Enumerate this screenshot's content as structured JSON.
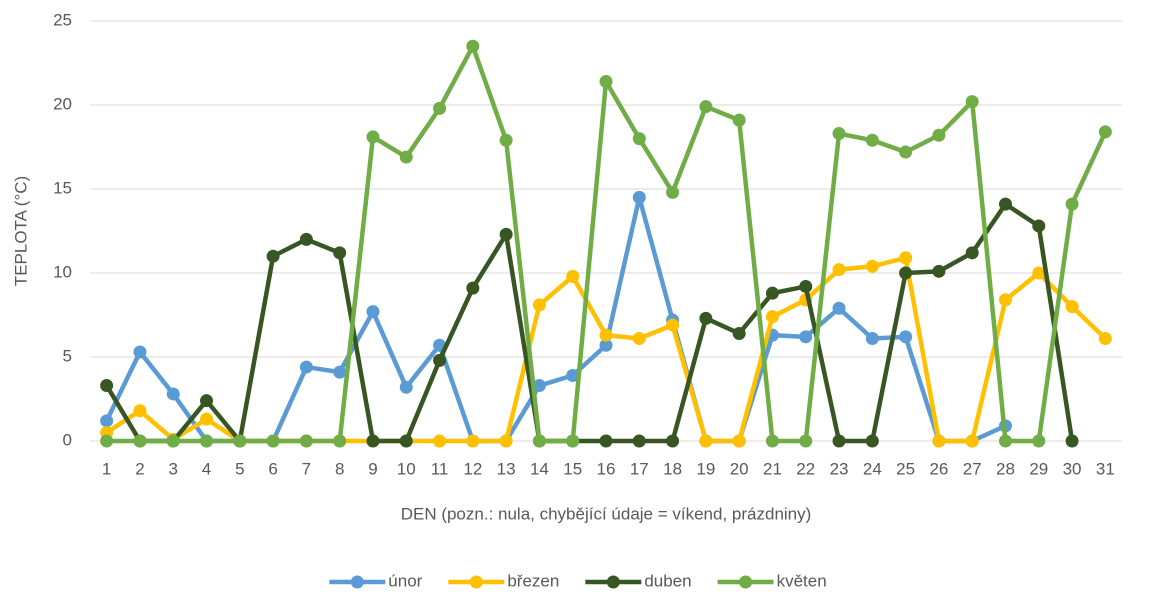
{
  "chart_data": {
    "type": "line",
    "y_label": "TEPLOTA (°C)",
    "x_label": "DEN (pozn.: nula, chybějící údaje = víkend, prázdniny)",
    "categories": [
      "1",
      "2",
      "3",
      "4",
      "5",
      "6",
      "7",
      "8",
      "9",
      "10",
      "11",
      "12",
      "13",
      "14",
      "15",
      "16",
      "17",
      "18",
      "19",
      "20",
      "21",
      "22",
      "23",
      "24",
      "25",
      "26",
      "27",
      "28",
      "29",
      "30",
      "31"
    ],
    "series": [
      {
        "name": "únor",
        "color": "#5b9bd5",
        "values": [
          1.2,
          5.3,
          2.8,
          0,
          0,
          0,
          4.4,
          4.1,
          7.7,
          3.2,
          5.7,
          0,
          0,
          3.3,
          3.9,
          5.7,
          14.5,
          7.2,
          0,
          0,
          6.3,
          6.2,
          7.9,
          6.1,
          6.2,
          0,
          0,
          0.9,
          null,
          null,
          null
        ]
      },
      {
        "name": "březen",
        "color": "#ffc000",
        "values": [
          0.5,
          1.8,
          0.1,
          1.3,
          0,
          0,
          0,
          0,
          0,
          0,
          0,
          0,
          0,
          8.1,
          9.8,
          6.3,
          6.1,
          6.9,
          0,
          0,
          7.4,
          8.4,
          10.2,
          10.4,
          10.9,
          0,
          0,
          8.4,
          10,
          8,
          6.1
        ]
      },
      {
        "name": "duben",
        "color": "#375623",
        "values": [
          3.3,
          0,
          0,
          2.4,
          0,
          11,
          12,
          11.2,
          0,
          0,
          4.8,
          9.1,
          12.3,
          0,
          0,
          0,
          0,
          0,
          7.3,
          6.4,
          8.8,
          9.2,
          0,
          0,
          10,
          10.1,
          11.2,
          14.1,
          12.8,
          0,
          null
        ]
      },
      {
        "name": "květen",
        "color": "#70ad47",
        "values": [
          0,
          0,
          0,
          0,
          0,
          0,
          0,
          0,
          18.1,
          16.9,
          19.8,
          23.5,
          17.9,
          0,
          0,
          21.4,
          18,
          14.8,
          19.9,
          19.1,
          0,
          0,
          18.3,
          17.9,
          17.2,
          18.2,
          20.2,
          0,
          0,
          14.1,
          18.4
        ]
      }
    ],
    "ylim": [
      0,
      25
    ],
    "yticks": [
      0,
      5,
      10,
      15,
      20,
      25
    ],
    "grid": true,
    "legend": "bottom"
  }
}
